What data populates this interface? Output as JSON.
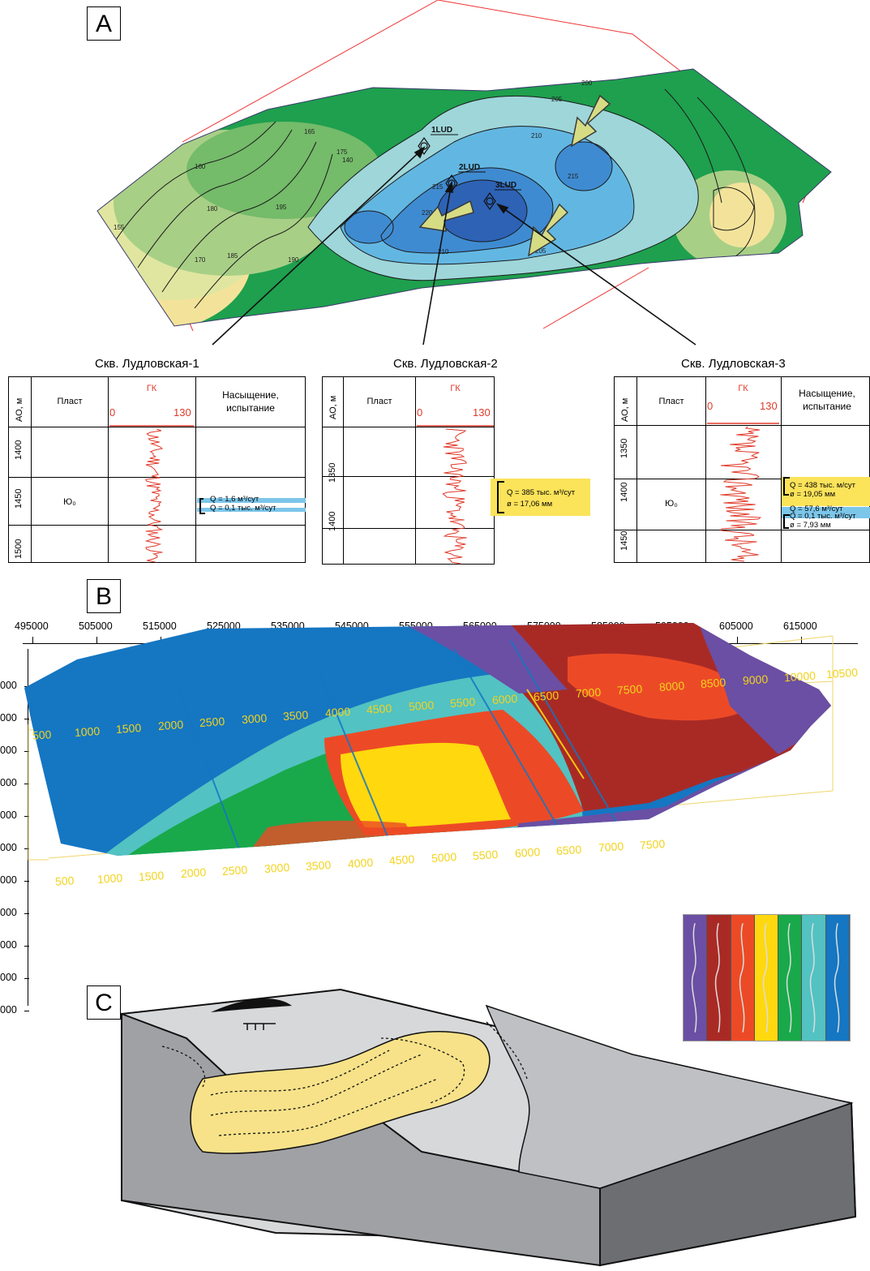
{
  "panels": {
    "a": "A",
    "b": "B",
    "c": "C"
  },
  "map_a": {
    "wells": [
      "1LUD",
      "2LUD",
      "3LUD"
    ],
    "contour_labels": [
      "200",
      "205",
      "210",
      "215",
      "220",
      "205",
      "210",
      "215",
      "195",
      "190",
      "185",
      "180",
      "175",
      "170",
      "165",
      "160",
      "155",
      "140"
    ]
  },
  "logs": [
    {
      "title": "Скв. Лудловская-1",
      "col_depth": "АО, м",
      "col_layer": "Пласт",
      "col_gk": "ГК",
      "gk_min": "0",
      "gk_max": "130",
      "col_sat": "Насыщение, испытание",
      "depths": [
        "1400",
        "1450",
        "1500"
      ],
      "layer": "Ю₀",
      "tests": [
        "Q = 1,6 м³/сут",
        "Q = 0,1 тыс. м³/сут"
      ]
    },
    {
      "title": "Скв. Лудловская-2",
      "col_depth": "АО, м",
      "col_layer": "Пласт",
      "col_gk": "ГК",
      "gk_min": "0",
      "gk_max": "130",
      "depths": [
        "1350",
        "1400"
      ],
      "tests": [
        "Q = 385 тыс. м³/сут",
        "ø = 17,06 мм"
      ]
    },
    {
      "title": "Скв. Лудловская-3",
      "col_depth": "АО, м",
      "col_layer": "Пласт",
      "col_gk": "ГК",
      "gk_min": "0",
      "gk_max": "130",
      "col_sat": "Насыщение, испытание",
      "depths": [
        "1350",
        "1400",
        "1450"
      ],
      "layer": "Ю₀",
      "tests": [
        "Q = 438 тыс. м/сут",
        "ø = 19,05 мм",
        "Q = 57,6 м³/сут",
        "Q = 0,1 тыс. м³/сут",
        "ø = 7,93 мм"
      ]
    }
  ],
  "map_b": {
    "top_axis": [
      "495000",
      "505000",
      "515000",
      "525000",
      "535000",
      "545000",
      "555000",
      "565000",
      "575000",
      "585000",
      "595000",
      "605000",
      "615000"
    ],
    "left_axis": [
      "000",
      "000",
      "000",
      "000",
      "000",
      "000",
      "000",
      "000",
      "000",
      "000",
      "000"
    ],
    "inline_top": [
      "500",
      "1000",
      "1500",
      "2000",
      "2500",
      "3000",
      "3500",
      "4000",
      "4500",
      "5000",
      "5500",
      "6000",
      "6500",
      "7000",
      "7500",
      "8000",
      "8500",
      "9000",
      "10000",
      "10500"
    ],
    "inline_bottom": [
      "500",
      "1000",
      "1500",
      "2000",
      "2500",
      "3000",
      "3500",
      "4000",
      "4500",
      "5000",
      "5500",
      "6000",
      "6500",
      "7000",
      "7500"
    ],
    "legend_colors": [
      "#6a4fa4",
      "#a92a25",
      "#ec4a26",
      "#ffd80e",
      "#19a94a",
      "#52c2c2",
      "#1576c2"
    ]
  },
  "colors": {
    "arrow_fill": "#d6dc84",
    "yellow": "#fbe35a",
    "blue_test": "#7cc6ea",
    "gk_curve": "#e03a2a"
  }
}
